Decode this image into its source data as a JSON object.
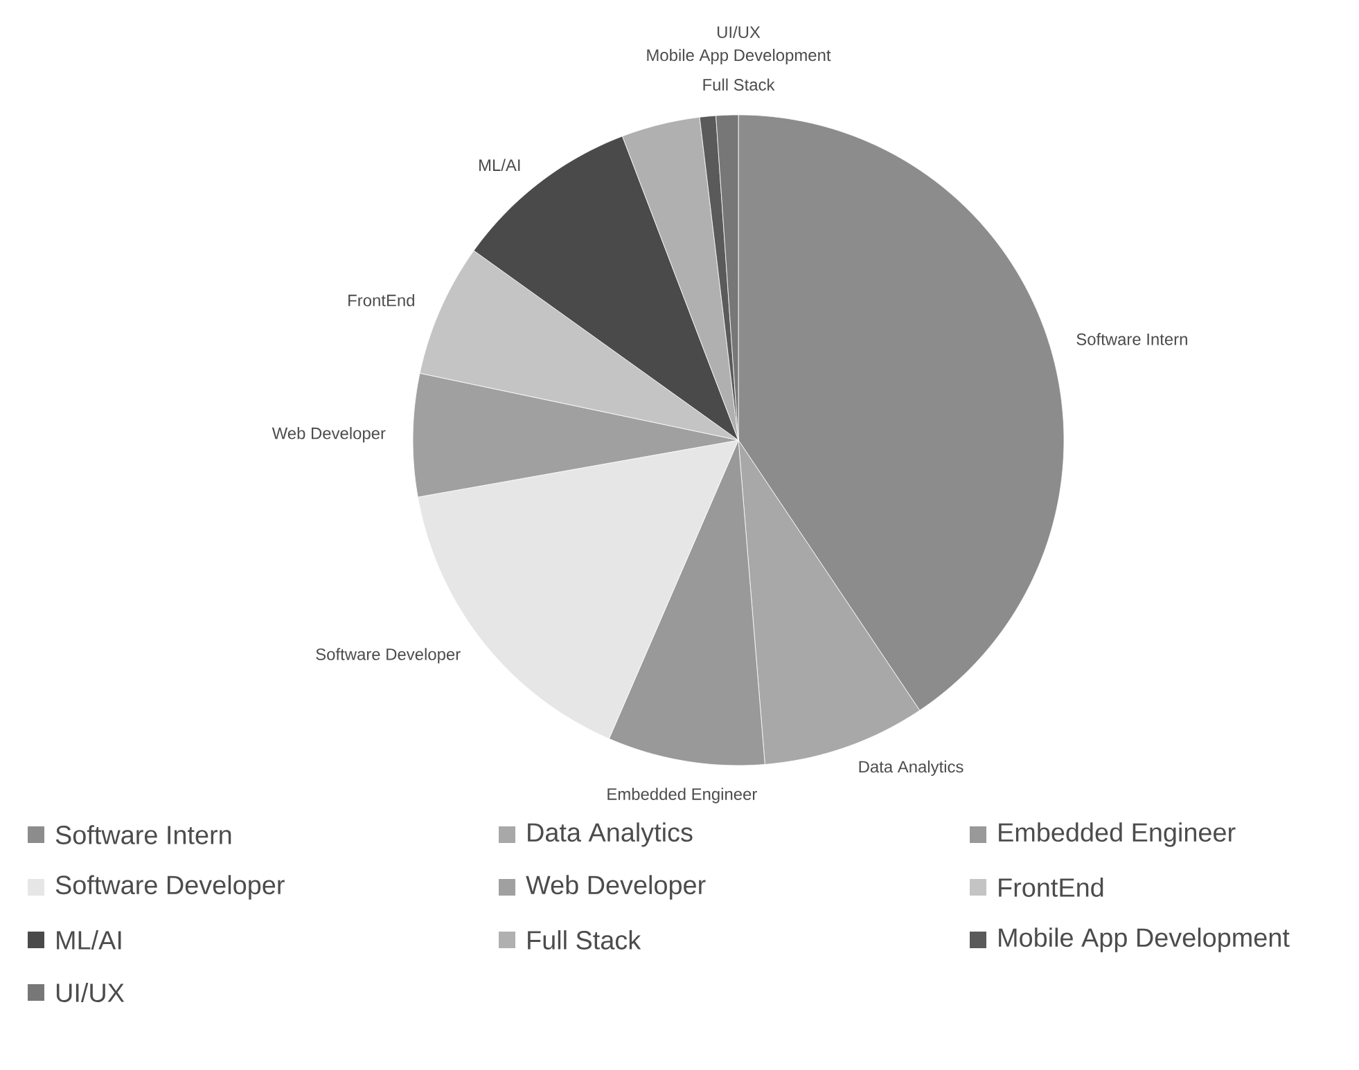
{
  "chart_data": {
    "type": "pie",
    "categories": [
      "Software Intern",
      "Data Analytics",
      "Embedded Engineer",
      "Software Developer",
      "Web Developer",
      "FrontEnd",
      "ML/AI",
      "Full Stack",
      "Mobile App Development",
      "UI/UX"
    ],
    "values": [
      40.6,
      8.1,
      7.8,
      15.7,
      6.1,
      6.6,
      9.3,
      3.9,
      0.8,
      1.1
    ],
    "colors": [
      "#8c8c8c",
      "#a8a8a8",
      "#999999",
      "#e6e6e6",
      "#a0a0a0",
      "#c4c4c4",
      "#4a4a4a",
      "#b0b0b0",
      "#5a5a5a",
      "#777777"
    ],
    "legend": "bottom"
  }
}
